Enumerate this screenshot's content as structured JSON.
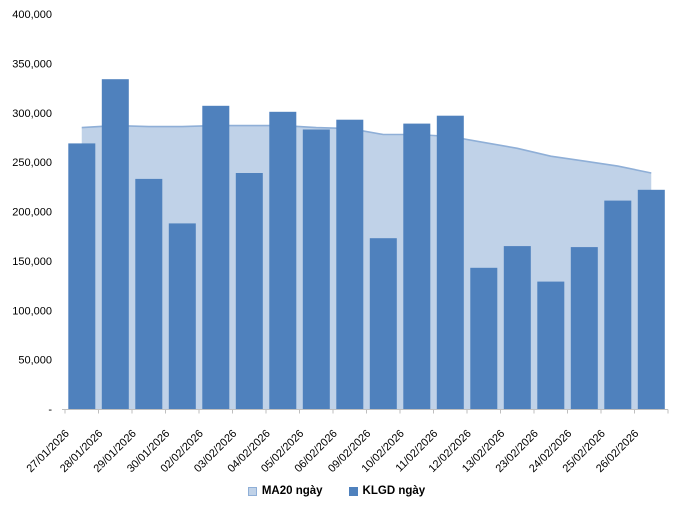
{
  "chart_data": {
    "type": "bar",
    "subtype": "combo-area-behind-bars",
    "title": "",
    "xlabel": "",
    "ylabel": "",
    "categories": [
      "27/01/2026",
      "28/01/2026",
      "29/01/2026",
      "30/01/2026",
      "02/02/2026",
      "03/02/2026",
      "04/02/2026",
      "05/02/2026",
      "06/02/2026",
      "09/02/2026",
      "10/02/2026",
      "11/02/2026",
      "12/02/2026",
      "13/02/2026",
      "23/02/2026",
      "24/02/2026",
      "25/02/2026",
      "26/02/2026"
    ],
    "series": [
      {
        "name": "MA20 ngày",
        "type": "area",
        "fill_color": "#C0D2E8",
        "line_color": "#8FAFD7",
        "values": [
          285000,
          287000,
          286000,
          286000,
          287000,
          287000,
          287000,
          285000,
          284000,
          278000,
          278000,
          276000,
          270000,
          264000,
          256000,
          251000,
          246000,
          239000
        ]
      },
      {
        "name": "KLGD ngày",
        "type": "bar",
        "fill_color": "#4F81BD",
        "values": [
          269000,
          334000,
          233000,
          188000,
          307000,
          239000,
          301000,
          283000,
          293000,
          173000,
          289000,
          297000,
          143000,
          165000,
          129000,
          164000,
          211000,
          222000
        ]
      }
    ],
    "ylim": [
      0,
      400000
    ],
    "ytick_step": 50000,
    "ytick_labels": [
      "-",
      "50,000",
      "100,000",
      "150,000",
      "200,000",
      "250,000",
      "300,000",
      "350,000",
      "400,000"
    ],
    "grid": false,
    "legend_position": "bottom",
    "axis_color": "#BFBFBF",
    "text_color": "#000000",
    "x_labels_rotation_deg": -45
  }
}
